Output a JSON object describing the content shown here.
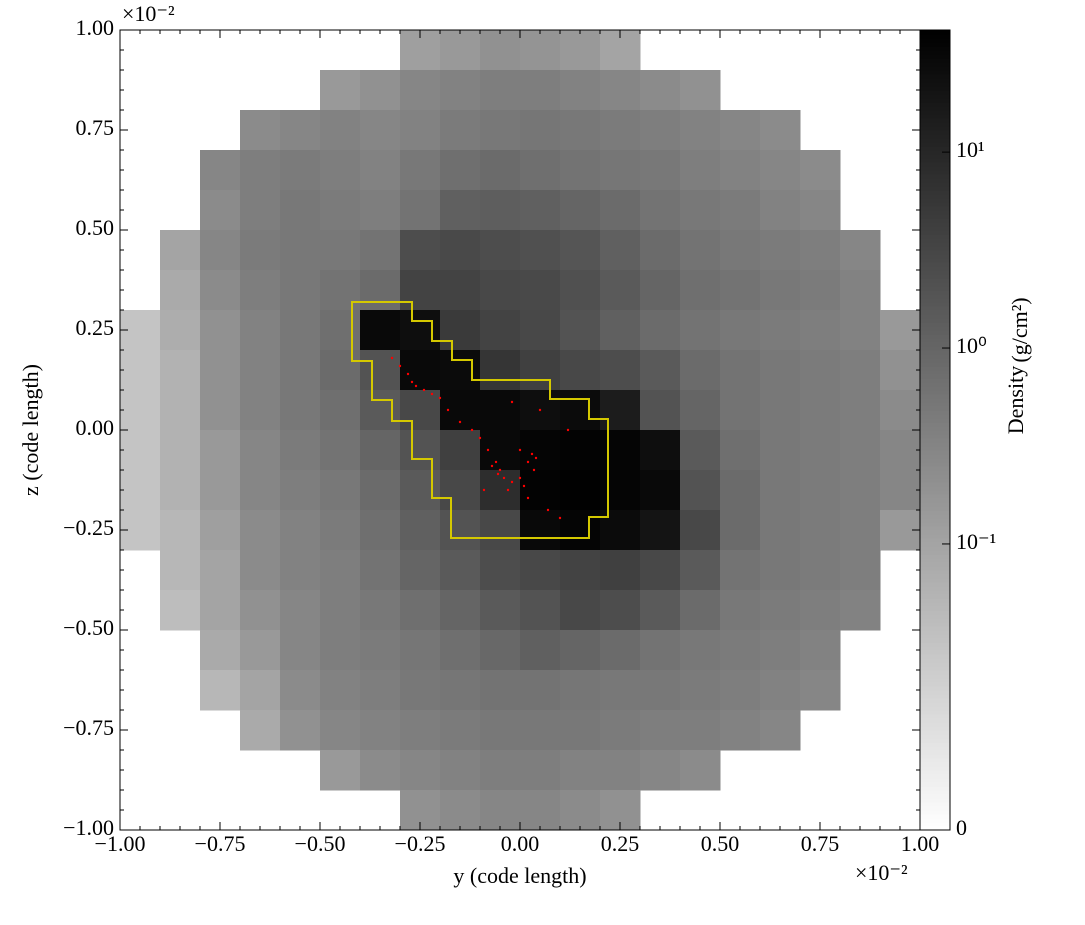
{
  "chart_data": {
    "type": "heatmap",
    "xlabel": "y  (code length)",
    "ylabel": "z  (code length)",
    "x_offset_label": "×10⁻²",
    "y_offset_label": "×10⁻²",
    "colorbar_label": "Density",
    "colorbar_unit": "(g/cm²)",
    "xlim": [
      -1,
      1
    ],
    "ylim": [
      -1,
      1
    ],
    "xticks": [
      {
        "value": -1,
        "label": "−1.00"
      },
      {
        "value": -0.75,
        "label": "−0.75"
      },
      {
        "value": -0.5,
        "label": "−0.50"
      },
      {
        "value": -0.25,
        "label": "−0.25"
      },
      {
        "value": 0,
        "label": "0.00"
      },
      {
        "value": 0.25,
        "label": "0.25"
      },
      {
        "value": 0.5,
        "label": "0.50"
      },
      {
        "value": 0.75,
        "label": "0.75"
      },
      {
        "value": 1,
        "label": "1.00"
      }
    ],
    "yticks": [
      {
        "value": -1,
        "label": "−1.00"
      },
      {
        "value": -0.75,
        "label": "−0.75"
      },
      {
        "value": -0.5,
        "label": "−0.50"
      },
      {
        "value": -0.25,
        "label": "−0.25"
      },
      {
        "value": 0,
        "label": "0.00"
      },
      {
        "value": 0.25,
        "label": "0.25"
      },
      {
        "value": 0.5,
        "label": "0.50"
      },
      {
        "value": 0.75,
        "label": "0.75"
      },
      {
        "value": 1,
        "label": "1.00"
      }
    ],
    "color_scale": "symlog",
    "linthresh": 0.01,
    "linscale": 0.46,
    "clim": [
      0,
      42
    ],
    "cticks": [
      0,
      {
        "value": 0.1,
        "label": "10⁻¹"
      },
      {
        "value": 1,
        "label": "10⁰"
      },
      {
        "value": 10,
        "label": "10¹"
      }
    ],
    "x": [
      -0.95,
      -0.85,
      -0.75,
      -0.65,
      -0.55,
      -0.45,
      -0.35,
      -0.25,
      -0.15,
      -0.05,
      0.05,
      0.15,
      0.25,
      0.35,
      0.45,
      0.55,
      0.65,
      0.75,
      0.85,
      0.95
    ],
    "y": [
      0.95,
      0.85,
      0.75,
      0.65,
      0.55,
      0.45,
      0.35,
      0.25,
      0.15,
      0.05,
      -0.05,
      -0.15,
      -0.25,
      -0.35,
      -0.45,
      -0.55,
      -0.65,
      -0.75,
      -0.85,
      -0.95
    ],
    "z": [
      [
        null,
        null,
        null,
        null,
        null,
        null,
        null,
        0.12,
        0.15,
        0.2,
        0.18,
        0.15,
        0.1,
        null,
        null,
        null,
        null,
        null,
        null,
        null
      ],
      [
        null,
        null,
        null,
        null,
        null,
        0.15,
        0.2,
        0.3,
        0.35,
        0.4,
        0.4,
        0.35,
        0.3,
        0.25,
        0.2,
        null,
        null,
        null,
        null,
        null
      ],
      [
        null,
        null,
        null,
        0.25,
        0.3,
        0.35,
        0.3,
        0.35,
        0.45,
        0.5,
        0.55,
        0.5,
        0.45,
        0.4,
        0.35,
        0.3,
        0.25,
        null,
        null,
        null
      ],
      [
        null,
        null,
        0.3,
        0.4,
        0.45,
        0.4,
        0.35,
        0.5,
        0.7,
        0.8,
        0.7,
        0.6,
        0.55,
        0.5,
        0.4,
        0.35,
        0.3,
        0.25,
        null,
        null
      ],
      [
        null,
        null,
        0.25,
        0.4,
        0.5,
        0.45,
        0.4,
        0.6,
        1.2,
        1.3,
        1.2,
        1.0,
        0.8,
        0.6,
        0.5,
        0.45,
        0.35,
        0.3,
        null,
        null
      ],
      [
        null,
        0.1,
        0.3,
        0.45,
        0.5,
        0.5,
        0.6,
        2.5,
        2.8,
        2.5,
        2.2,
        1.8,
        1.2,
        0.8,
        0.6,
        0.5,
        0.45,
        0.4,
        0.3,
        null
      ],
      [
        null,
        0.08,
        0.25,
        0.4,
        0.5,
        0.6,
        0.8,
        3.5,
        3.5,
        3.0,
        2.8,
        2.2,
        1.5,
        1.0,
        0.7,
        0.6,
        0.5,
        0.45,
        0.35,
        null
      ],
      [
        0.03,
        0.07,
        0.2,
        0.35,
        0.5,
        0.7,
        30,
        25,
        5,
        3.5,
        3.0,
        2.0,
        1.2,
        0.8,
        0.6,
        0.5,
        0.45,
        0.4,
        0.35,
        0.15
      ],
      [
        0.03,
        0.06,
        0.2,
        0.35,
        0.5,
        0.8,
        2.0,
        30,
        28,
        6,
        4,
        3,
        2.5,
        1.5,
        0.8,
        0.6,
        0.5,
        0.45,
        0.4,
        0.2
      ],
      [
        0.03,
        0.06,
        0.2,
        0.35,
        0.5,
        0.7,
        1.5,
        3,
        30,
        30,
        25,
        28,
        15,
        2,
        1.0,
        0.6,
        0.5,
        0.45,
        0.4,
        0.25
      ],
      [
        0.03,
        0.06,
        0.15,
        0.3,
        0.45,
        0.6,
        1.0,
        2,
        4,
        30,
        35,
        38,
        35,
        25,
        1.5,
        0.7,
        0.5,
        0.45,
        0.4,
        0.3
      ],
      [
        0.03,
        0.06,
        0.15,
        0.3,
        0.4,
        0.5,
        0.8,
        1.5,
        3,
        8,
        38,
        40,
        35,
        30,
        2,
        0.8,
        0.5,
        0.45,
        0.4,
        0.3
      ],
      [
        0.03,
        0.05,
        0.12,
        0.25,
        0.35,
        0.45,
        0.7,
        1.2,
        2,
        3,
        30,
        35,
        28,
        20,
        3,
        0.8,
        0.5,
        0.45,
        0.4,
        0.15
      ],
      [
        null,
        0.05,
        0.1,
        0.25,
        0.35,
        0.4,
        0.6,
        1.0,
        1.5,
        2.5,
        3,
        3.5,
        4,
        3,
        1.5,
        0.6,
        0.5,
        0.45,
        0.4,
        null
      ],
      [
        null,
        0.04,
        0.1,
        0.2,
        0.3,
        0.4,
        0.5,
        0.7,
        1.0,
        1.5,
        2,
        3,
        2.5,
        1.5,
        0.8,
        0.5,
        0.45,
        0.4,
        0.35,
        null
      ],
      [
        null,
        null,
        0.08,
        0.15,
        0.3,
        0.4,
        0.45,
        0.55,
        0.7,
        0.9,
        1.2,
        1.0,
        0.8,
        0.6,
        0.5,
        0.45,
        0.4,
        0.35,
        null,
        null
      ],
      [
        null,
        null,
        0.05,
        0.1,
        0.25,
        0.35,
        0.4,
        0.5,
        0.55,
        0.6,
        0.6,
        0.55,
        0.5,
        0.5,
        0.45,
        0.4,
        0.35,
        0.3,
        null,
        null
      ],
      [
        null,
        null,
        null,
        0.08,
        0.2,
        0.3,
        0.35,
        0.4,
        0.45,
        0.5,
        0.5,
        0.5,
        0.45,
        0.4,
        0.4,
        0.35,
        0.3,
        null,
        null,
        null
      ],
      [
        null,
        null,
        null,
        null,
        null,
        0.15,
        0.25,
        0.3,
        0.35,
        0.4,
        0.4,
        0.35,
        0.35,
        0.3,
        0.25,
        null,
        null,
        null,
        null,
        null
      ],
      [
        null,
        null,
        null,
        null,
        null,
        null,
        null,
        0.2,
        0.25,
        0.3,
        0.3,
        0.25,
        0.2,
        null,
        null,
        null,
        null,
        null,
        null,
        null
      ]
    ],
    "contour": {
      "color": "#d4c800",
      "x": [
        -0.42,
        -0.27,
        -0.27,
        -0.22,
        -0.22,
        -0.17,
        -0.17,
        -0.12,
        -0.12,
        0.075,
        0.075,
        0.1725,
        0.1725,
        0.22,
        0.22,
        0.1725,
        0.1725,
        -0.1725,
        -0.1725,
        -0.22,
        -0.22,
        -0.27,
        -0.27,
        -0.32,
        -0.32,
        -0.37,
        -0.37,
        -0.42
      ],
      "y": [
        0.32,
        0.32,
        0.2725,
        0.2725,
        0.2225,
        0.2225,
        0.175,
        0.175,
        0.125,
        0.125,
        0.0775,
        0.0775,
        0.0275,
        0.0275,
        -0.2175,
        -0.2175,
        -0.27,
        -0.27,
        -0.17,
        -0.17,
        -0.0725,
        -0.0725,
        0.0225,
        0.0225,
        0.075,
        0.075,
        0.1725,
        0.1725
      ]
    },
    "particles": {
      "color": "#ff0000",
      "x": [
        -0.32,
        -0.3,
        -0.28,
        -0.27,
        -0.26,
        -0.24,
        -0.22,
        -0.2,
        -0.18,
        -0.15,
        -0.12,
        -0.1,
        -0.08,
        -0.06,
        -0.05,
        -0.04,
        -0.02,
        0.0,
        0.02,
        0.03,
        0.04,
        0.035,
        0.01,
        -0.03,
        -0.055,
        -0.07,
        0.0,
        0.02,
        0.1,
        0.05,
        -0.02,
        0.12,
        -0.09,
        0.07
      ],
      "y": [
        0.18,
        0.16,
        0.14,
        0.12,
        0.11,
        0.1,
        0.09,
        0.08,
        0.05,
        0.02,
        0.0,
        -0.02,
        -0.05,
        -0.08,
        -0.1,
        -0.12,
        -0.13,
        -0.12,
        -0.08,
        -0.06,
        -0.07,
        -0.1,
        -0.14,
        -0.15,
        -0.11,
        -0.09,
        -0.05,
        -0.17,
        -0.22,
        0.05,
        0.07,
        0.0,
        -0.15,
        -0.2
      ]
    }
  }
}
